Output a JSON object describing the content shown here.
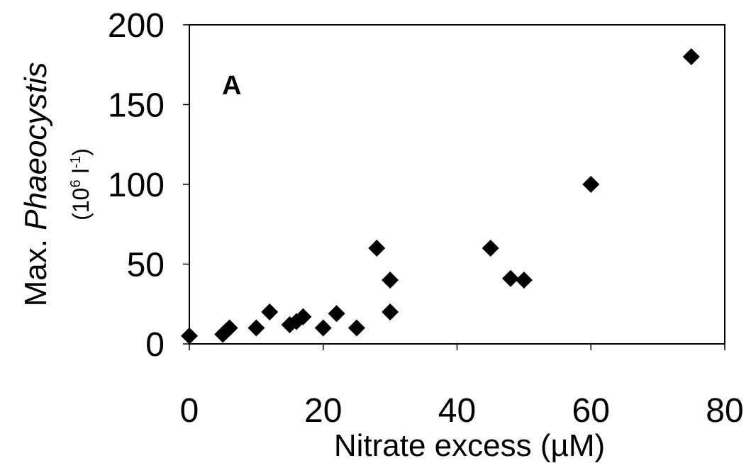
{
  "chart_data": {
    "type": "scatter",
    "panel_label": "A",
    "xlabel": "Nitrate excess (µM)",
    "ylabel_prefix": "Max. ",
    "ylabel_italic": "Phaeocystis",
    "ylabel_units_open": "(10",
    "ylabel_units_exp1": "6",
    "ylabel_units_mid": " l",
    "ylabel_units_exp2": "-1",
    "ylabel_units_close": ")",
    "xlim": [
      0,
      80
    ],
    "ylim": [
      0,
      200
    ],
    "x_ticks": [
      0,
      20,
      40,
      60,
      80
    ],
    "y_ticks": [
      0,
      50,
      100,
      150,
      200
    ],
    "x_tick_labels": [
      "0",
      "20",
      "40",
      "60",
      "80"
    ],
    "y_tick_labels": [
      "0",
      "50",
      "100",
      "150",
      "200"
    ],
    "grid": false,
    "marker": "diamond",
    "marker_color": "#000000",
    "points": [
      {
        "x": 0,
        "y": 5
      },
      {
        "x": 5,
        "y": 6
      },
      {
        "x": 5.5,
        "y": 8
      },
      {
        "x": 6,
        "y": 10
      },
      {
        "x": 10,
        "y": 10
      },
      {
        "x": 12,
        "y": 20
      },
      {
        "x": 15,
        "y": 12
      },
      {
        "x": 16,
        "y": 14
      },
      {
        "x": 17,
        "y": 17
      },
      {
        "x": 20,
        "y": 10
      },
      {
        "x": 22,
        "y": 19
      },
      {
        "x": 25,
        "y": 10
      },
      {
        "x": 28,
        "y": 60
      },
      {
        "x": 30,
        "y": 40
      },
      {
        "x": 30,
        "y": 20
      },
      {
        "x": 45,
        "y": 60
      },
      {
        "x": 48,
        "y": 41
      },
      {
        "x": 50,
        "y": 40
      },
      {
        "x": 60,
        "y": 100
      },
      {
        "x": 75,
        "y": 180
      }
    ]
  }
}
